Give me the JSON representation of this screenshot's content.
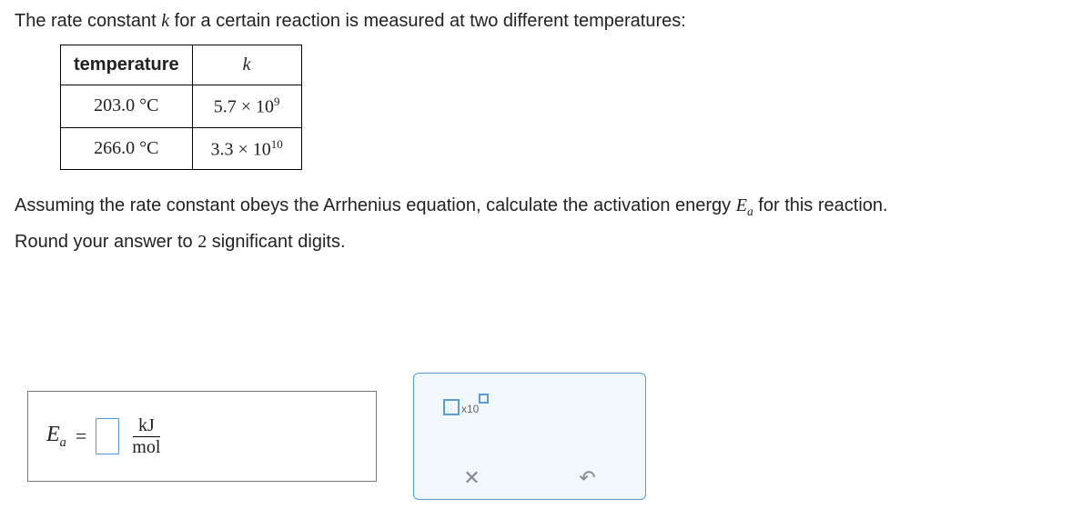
{
  "problem": {
    "intro_before_k": "The rate constant ",
    "intro_after_k": " for a certain reaction is measured at two different temperatures:",
    "k_symbol": "k",
    "middle_before_Ea": "Assuming the rate constant obeys the Arrhenius equation, calculate the activation energy ",
    "middle_after_Ea": " for this reaction.",
    "E_symbol": "E",
    "a_sub": "a",
    "round_instruction_before": "Round your answer to ",
    "round_number": "2",
    "round_instruction_after": " significant digits."
  },
  "table": {
    "header_temp": "temperature",
    "header_k": "k",
    "rows": [
      {
        "temp": "203.0 °C",
        "k_base": "5.7 × 10",
        "k_exp": "9"
      },
      {
        "temp": "266.0 °C",
        "k_base": "3.3 × 10",
        "k_exp": "10"
      }
    ]
  },
  "answer": {
    "equals": "=",
    "unit_top": "kJ",
    "unit_bot": "mol"
  },
  "toolbar": {
    "x10_label": "x10"
  },
  "colors": {
    "border_input": "#5a9bd5",
    "panel_bg": "#f0f7fd"
  }
}
